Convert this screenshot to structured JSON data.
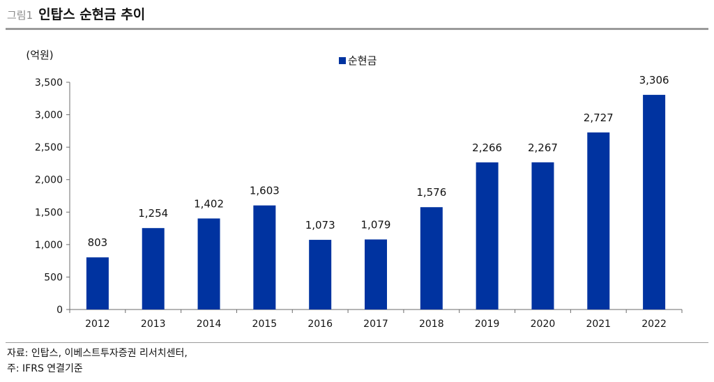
{
  "figure": {
    "number": "그림1",
    "title": "인탑스 순현금 추이"
  },
  "chart_data": {
    "type": "bar",
    "title": "",
    "ylabel": "(억원)",
    "xlabel": "",
    "categories": [
      "2012",
      "2013",
      "2014",
      "2015",
      "2016",
      "2017",
      "2018",
      "2019",
      "2020",
      "2021",
      "2022"
    ],
    "series": [
      {
        "name": "순현금",
        "values": [
          803,
          1254,
          1402,
          1603,
          1073,
          1079,
          1576,
          2266,
          2267,
          2727,
          3306
        ],
        "labels": [
          "803",
          "1,254",
          "1,402",
          "1,603",
          "1,073",
          "1,079",
          "1,576",
          "2,266",
          "2,267",
          "2,727",
          "3,306"
        ]
      }
    ],
    "ylim": [
      0,
      3500
    ],
    "yticks": [
      0,
      500,
      1000,
      1500,
      2000,
      2500,
      3000,
      3500
    ],
    "ytick_labels": [
      "0",
      "500",
      "1,000",
      "1,500",
      "2,000",
      "2,500",
      "3,000",
      "3,500"
    ],
    "legend_position": "top-center",
    "grid": false,
    "colors": {
      "bar": "#0033A0",
      "axis": "#6b6b6b"
    }
  },
  "footer": {
    "source": "자료: 인탑스, 이베스트투자증권 리서치센터,",
    "note": "주: IFRS 연결기준"
  }
}
